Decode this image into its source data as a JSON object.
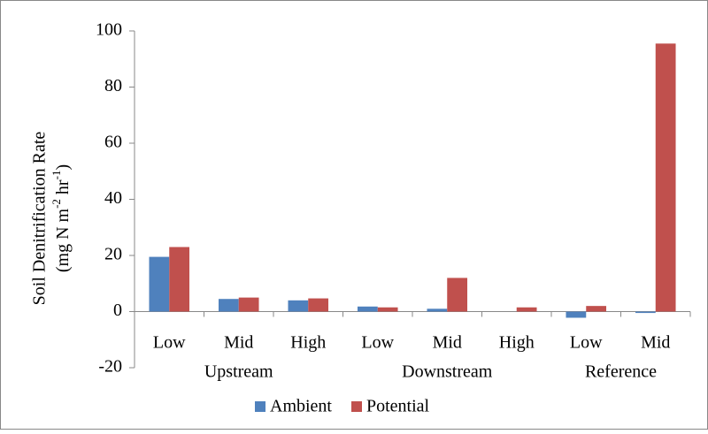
{
  "chart_data": {
    "type": "bar",
    "y_label": {
      "line1": "Soil Denitrification Rate",
      "line2": [
        "(mg N m",
        "-2",
        " hr",
        "-1",
        ")"
      ]
    },
    "groups": [
      {
        "name": "Upstream",
        "categories": [
          "Low",
          "Mid",
          "High"
        ]
      },
      {
        "name": "Downstream",
        "categories": [
          "Low",
          "Mid",
          "High"
        ]
      },
      {
        "name": "Reference",
        "categories": [
          "Low",
          "Mid"
        ]
      }
    ],
    "series": [
      {
        "name": "Ambient",
        "color": "#4f81bd",
        "values": [
          19.5,
          4.5,
          4,
          1.8,
          1,
          null,
          -2.2,
          -0.5
        ]
      },
      {
        "name": "Potential",
        "color": "#c0504d",
        "values": [
          23,
          5,
          4.7,
          1.5,
          12,
          1.5,
          2,
          95.5
        ]
      }
    ],
    "ylim": [
      -20,
      100
    ],
    "yticks": [
      -20,
      0,
      20,
      40,
      60,
      80,
      100
    ],
    "legend": "bottom"
  }
}
